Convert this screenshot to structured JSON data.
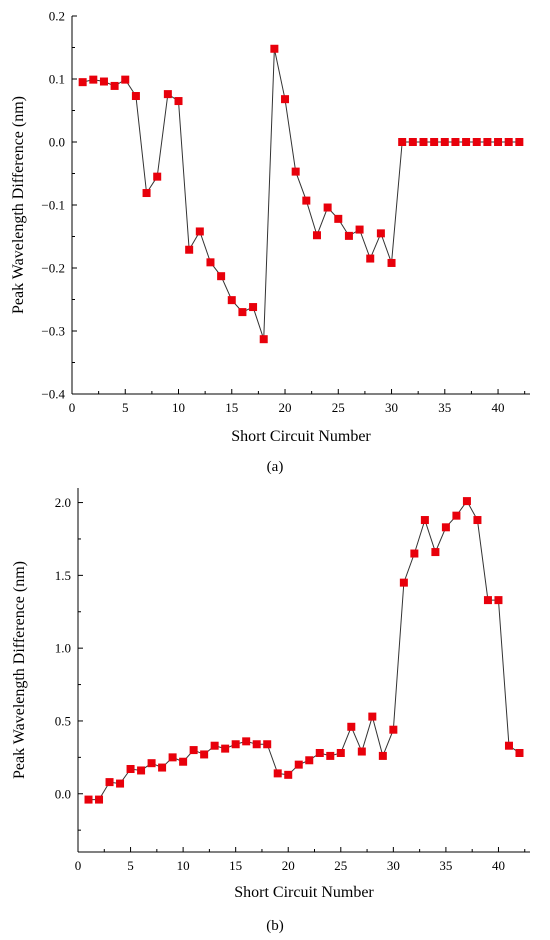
{
  "chart_data": [
    {
      "type": "line",
      "panel_label": "(a)",
      "xlabel": "Short Circuit Number",
      "ylabel": "Peak Wavelength Difference (nm)",
      "xlim": [
        0,
        43
      ],
      "ylim": [
        -0.4,
        0.2
      ],
      "xticks": [
        0,
        5,
        10,
        15,
        20,
        25,
        30,
        35,
        40
      ],
      "yticks": [
        -0.4,
        -0.3,
        -0.2,
        -0.1,
        0.0,
        0.1,
        0.2
      ],
      "ytick_labels": [
        "−0.4",
        "−0.3",
        "−0.2",
        "−0.1",
        "0.0",
        "0.1",
        "0.2"
      ],
      "xtick_labels": [
        "0",
        "5",
        "10",
        "15",
        "20",
        "25",
        "30",
        "35",
        "40"
      ],
      "grid": false,
      "marker": "square",
      "marker_color": "#e8000b",
      "line_color": "#333333",
      "series": [
        {
          "x": [
            1,
            2,
            3,
            4,
            5,
            6,
            7,
            8,
            9,
            10,
            11,
            12,
            13,
            14,
            15,
            16,
            17,
            18,
            19,
            20,
            21,
            22,
            23,
            24,
            25,
            26,
            27,
            28,
            29,
            30,
            31,
            32,
            33,
            34,
            35,
            36,
            37,
            38,
            39,
            40,
            41,
            42
          ],
          "values": [
            0.095,
            0.099,
            0.096,
            0.089,
            0.099,
            0.073,
            -0.081,
            -0.055,
            0.076,
            0.065,
            -0.171,
            -0.142,
            -0.191,
            -0.213,
            -0.251,
            -0.27,
            -0.262,
            -0.313,
            0.148,
            0.068,
            -0.047,
            -0.093,
            -0.148,
            -0.104,
            -0.122,
            -0.149,
            -0.139,
            -0.185,
            -0.145,
            -0.192,
            0.0,
            0.0,
            0.0,
            0.0,
            0.0,
            0.0,
            0.0,
            0.0,
            0.0,
            0.0,
            0.0,
            0.0
          ]
        }
      ]
    },
    {
      "type": "line",
      "panel_label": "(b)",
      "xlabel": "Short Circuit Number",
      "ylabel": "Peak Wavelength Difference (nm)",
      "xlim": [
        0,
        43
      ],
      "ylim": [
        -0.4,
        2.1
      ],
      "xticks": [
        0,
        5,
        10,
        15,
        20,
        25,
        30,
        35,
        40
      ],
      "yticks": [
        0.0,
        0.5,
        1.0,
        1.5,
        2.0
      ],
      "ytick_labels": [
        "0.0",
        "0.5",
        "1.0",
        "1.5",
        "2.0"
      ],
      "xtick_labels": [
        "0",
        "5",
        "10",
        "15",
        "20",
        "25",
        "30",
        "35",
        "40"
      ],
      "grid": false,
      "marker": "square",
      "marker_color": "#e8000b",
      "line_color": "#333333",
      "series": [
        {
          "x": [
            1,
            2,
            3,
            4,
            5,
            6,
            7,
            8,
            9,
            10,
            11,
            12,
            13,
            14,
            15,
            16,
            17,
            18,
            19,
            20,
            21,
            22,
            23,
            24,
            25,
            26,
            27,
            28,
            29,
            30,
            31,
            32,
            33,
            34,
            35,
            36,
            37,
            38,
            39,
            40,
            41,
            42
          ],
          "values": [
            -0.04,
            -0.04,
            0.08,
            0.07,
            0.17,
            0.16,
            0.21,
            0.18,
            0.25,
            0.22,
            0.3,
            0.27,
            0.33,
            0.31,
            0.34,
            0.36,
            0.34,
            0.34,
            0.14,
            0.13,
            0.2,
            0.23,
            0.28,
            0.26,
            0.28,
            0.46,
            0.29,
            0.53,
            0.26,
            0.44,
            1.45,
            1.65,
            1.88,
            1.66,
            1.83,
            1.91,
            2.01,
            1.88,
            1.33,
            1.33,
            0.33,
            0.28
          ]
        }
      ]
    }
  ]
}
